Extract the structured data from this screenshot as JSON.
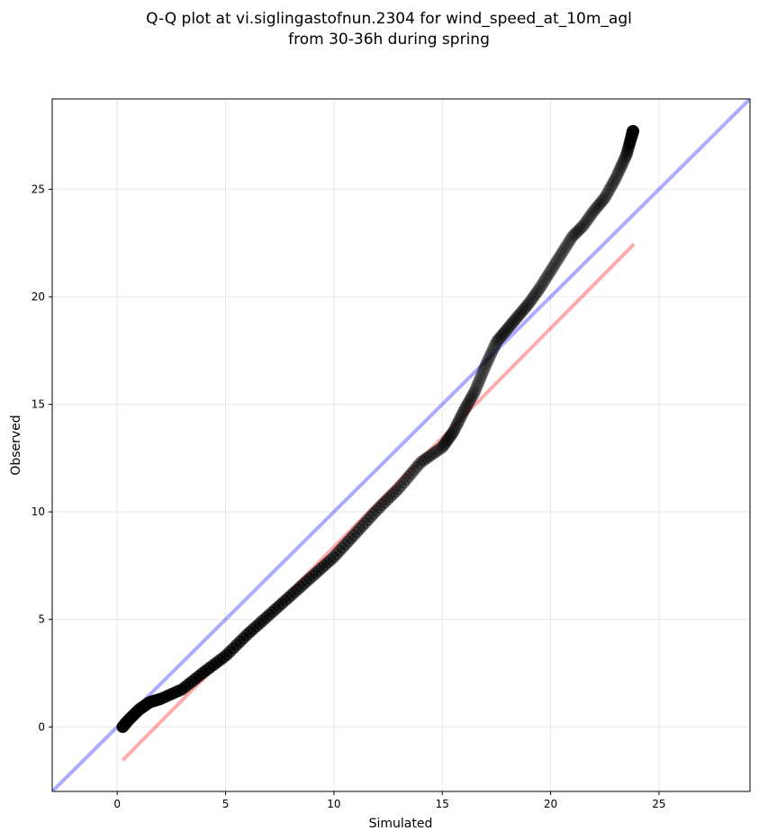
{
  "chart_data": {
    "type": "scatter",
    "title_lines": [
      "Q-Q plot at vi.siglingastofnun.2304 for wind_speed_at_10m_agl",
      "from 30-36h during spring"
    ],
    "xlabel": "Simulated",
    "ylabel": "Observed",
    "xlim": [
      -3,
      29.2
    ],
    "ylim": [
      -3,
      29.2
    ],
    "xticks": [
      0,
      5,
      10,
      15,
      20,
      25
    ],
    "yticks": [
      0,
      5,
      10,
      15,
      20,
      25
    ],
    "grid": true,
    "colors": {
      "points": "#000000",
      "identity_line": "#0000ff",
      "fit_line": "#ff0000",
      "grid": "#e8e8e8"
    },
    "lines": [
      {
        "role": "identity",
        "x": [
          -3,
          29.2
        ],
        "y": [
          -3,
          29.2
        ]
      },
      {
        "role": "fit",
        "x": [
          0.25,
          23.85
        ],
        "y": [
          -1.55,
          22.45
        ]
      }
    ],
    "quantile_anchors": {
      "x": [
        0.25,
        0.5,
        1.0,
        1.5,
        2.0,
        3.0,
        4.0,
        5.0,
        6.0,
        7.0,
        8.0,
        9.0,
        10.0,
        11.0,
        12.0,
        13.0,
        14.0,
        15.0,
        15.5,
        16.0,
        16.5,
        17.0,
        17.5,
        18.0,
        18.5,
        19.0,
        19.5,
        20.0,
        20.5,
        21.0,
        21.5,
        22.0,
        22.5,
        23.0,
        23.5,
        23.8
      ],
      "y": [
        0.0,
        0.3,
        0.8,
        1.15,
        1.3,
        1.75,
        2.55,
        3.3,
        4.3,
        5.2,
        6.1,
        7.0,
        7.9,
        9.0,
        10.1,
        11.1,
        12.3,
        13.0,
        13.7,
        14.7,
        15.6,
        16.8,
        17.9,
        18.5,
        19.1,
        19.7,
        20.4,
        21.2,
        22.0,
        22.8,
        23.3,
        24.0,
        24.6,
        25.5,
        26.6,
        27.7
      ]
    },
    "n_points": 620
  }
}
